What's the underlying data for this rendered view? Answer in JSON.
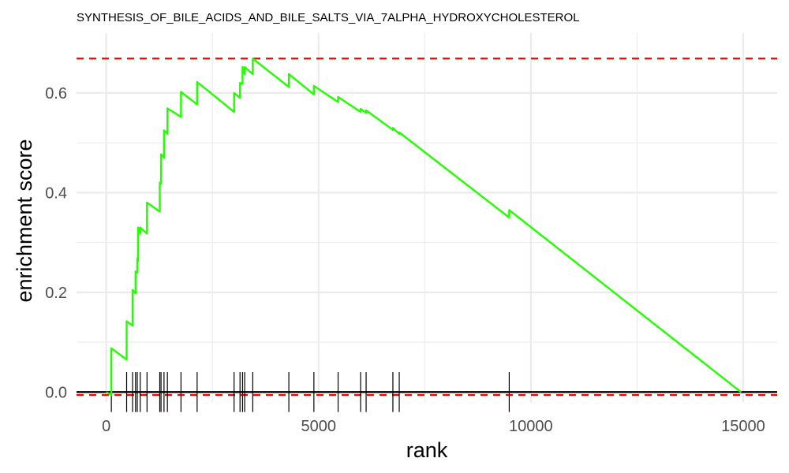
{
  "chart_data": {
    "type": "line",
    "title": "SYNTHESIS_OF_BILE_ACIDS_AND_BILE_SALTS_VIA_7ALPHA_HYDROXYCHOLESTEROL",
    "xlabel": "rank",
    "ylabel": "enrichment score",
    "xlim": [
      -700,
      15800
    ],
    "ylim": [
      -0.02,
      0.72
    ],
    "x_ticks": [
      0,
      5000,
      10000,
      15000
    ],
    "x_tick_labels": [
      "0",
      "5000",
      "10000",
      "15000"
    ],
    "y_ticks": [
      0.0,
      0.2,
      0.4,
      0.6
    ],
    "y_tick_labels": [
      "0.0",
      "0.2",
      "0.4",
      "0.6"
    ],
    "grid": true,
    "legend": "none",
    "colors": {
      "curve": "#22ff00",
      "reference_lines": "#ff0000",
      "zero_line": "#000000",
      "rug": "#000000",
      "grid": "#ebebeb"
    },
    "reference_lines": {
      "max_es": 0.669,
      "min_es": -0.006
    },
    "series": [
      {
        "x": [
          0,
          120,
          120,
          480,
          480,
          620,
          620,
          690,
          690,
          730,
          730,
          750,
          750,
          800,
          800,
          960,
          960,
          1260,
          1260,
          1290,
          1290,
          1360,
          1360,
          1440,
          1440,
          1760,
          1760,
          2140,
          2140,
          3010,
          3010,
          3150,
          3150,
          3210,
          3210,
          3260,
          3260,
          3450,
          3450,
          4300,
          4300,
          4890,
          4890,
          5460,
          5460,
          5990,
          5990,
          6120,
          6120,
          6750,
          6750,
          6900,
          6900,
          9490,
          9490,
          14950
        ],
        "y": [
          0,
          -0.006,
          0.088,
          0.065,
          0.142,
          0.133,
          0.205,
          0.198,
          0.242,
          0.24,
          0.268,
          0.263,
          0.33,
          0.318,
          0.33,
          0.318,
          0.38,
          0.362,
          0.42,
          0.418,
          0.477,
          0.47,
          0.525,
          0.518,
          0.569,
          0.552,
          0.602,
          0.577,
          0.622,
          0.562,
          0.6,
          0.59,
          0.62,
          0.618,
          0.652,
          0.638,
          0.652,
          0.638,
          0.669,
          0.612,
          0.638,
          0.597,
          0.614,
          0.582,
          0.592,
          0.562,
          0.568,
          0.56,
          0.565,
          0.526,
          0.53,
          0.518,
          0.521,
          0.35,
          0.365,
          0.0
        ]
      }
    ],
    "rug_positions": [
      120,
      480,
      620,
      690,
      730,
      800,
      960,
      1260,
      1290,
      1360,
      1440,
      1760,
      2140,
      3010,
      3150,
      3210,
      3260,
      3450,
      4300,
      4890,
      5460,
      5990,
      6120,
      6750,
      6900,
      9490
    ]
  }
}
